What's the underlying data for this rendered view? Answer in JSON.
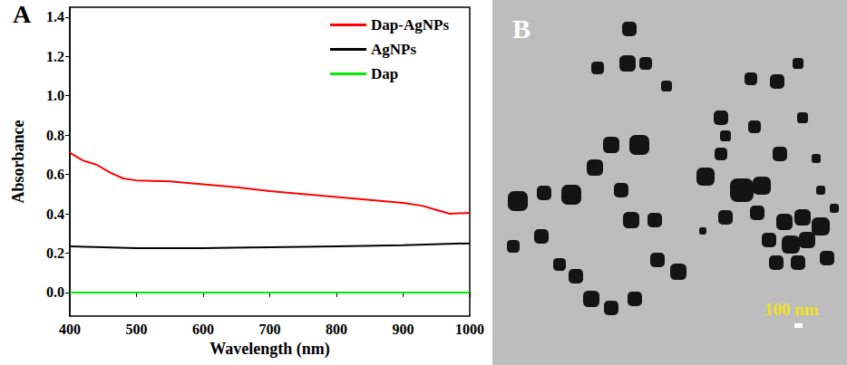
{
  "panel_letters": [
    "A",
    "B"
  ],
  "chart_data": {
    "type": "line",
    "xlabel": "Wavelength (nm)",
    "ylabel": "Absorbance",
    "xlim": [
      400,
      1000
    ],
    "xticks": [
      400,
      500,
      600,
      700,
      800,
      900,
      1000
    ],
    "ylim": [
      -0.12,
      1.45
    ],
    "yticks": [
      {
        "value": 0,
        "label": "0.0"
      },
      0.2,
      0.4,
      0.6,
      0.8,
      {
        "value": 1,
        "label": "1.0"
      },
      1.2,
      1.4
    ],
    "grid": false,
    "legend": "upper right",
    "series": [
      {
        "name": "Dap-AgNPs",
        "color": "#ff0000",
        "x": [
          400,
          420,
          440,
          460,
          480,
          500,
          550,
          600,
          650,
          700,
          750,
          800,
          850,
          900,
          930,
          950,
          970,
          1000
        ],
        "values": [
          0.71,
          0.67,
          0.65,
          0.61,
          0.58,
          0.57,
          0.565,
          0.55,
          0.535,
          0.515,
          0.5,
          0.485,
          0.47,
          0.455,
          0.44,
          0.42,
          0.4,
          0.405
        ]
      },
      {
        "name": "AgNPs",
        "color": "#000000",
        "x": [
          400,
          500,
          600,
          700,
          800,
          900,
          1000
        ],
        "values": [
          0.235,
          0.225,
          0.225,
          0.23,
          0.235,
          0.24,
          0.25
        ]
      },
      {
        "name": "Dap",
        "color": "#00ee00",
        "x": [
          400,
          500,
          600,
          700,
          800,
          900,
          1000
        ],
        "values": [
          0,
          0,
          0,
          0,
          0,
          0,
          0
        ]
      }
    ]
  },
  "image": {
    "scale_bar": "100 nm"
  }
}
